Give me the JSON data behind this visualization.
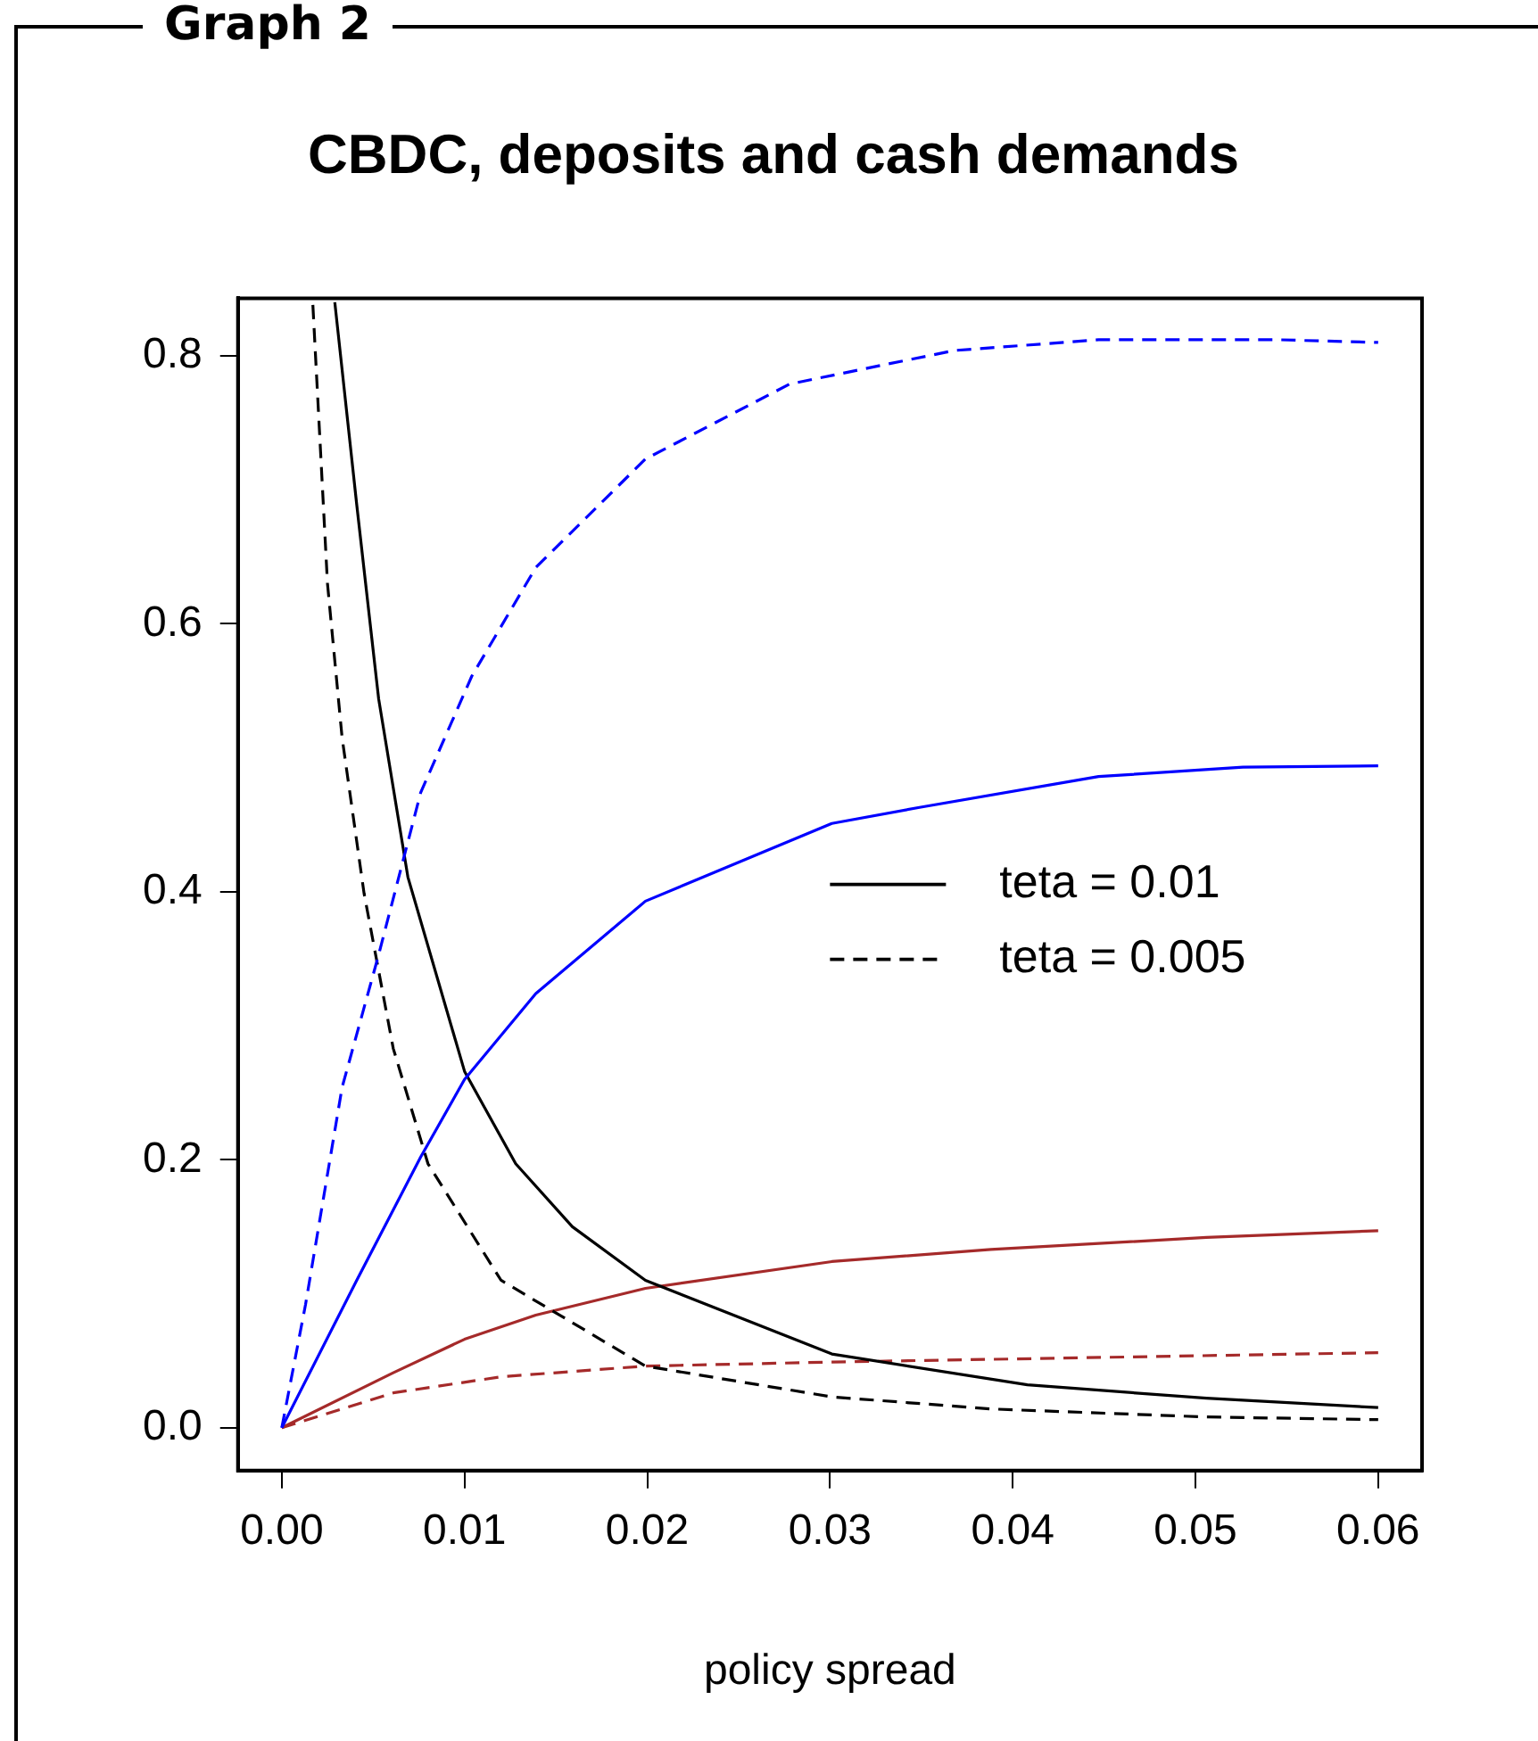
{
  "chart_data": {
    "type": "line",
    "title": "CBDC, deposits and cash demands",
    "xlabel": "policy spread",
    "annotations": [
      "Graph 2"
    ],
    "xlim": [
      -0.0024,
      0.0624
    ],
    "xticks": [
      {
        "value": 0,
        "label": "0.00"
      },
      {
        "value": 0.01,
        "label": "0.01"
      },
      {
        "value": 0.02,
        "label": "0.02"
      },
      {
        "value": 0.03,
        "label": "0.03"
      },
      {
        "value": 0.04,
        "label": "0.04"
      },
      {
        "value": 0.05,
        "label": "0.05"
      },
      {
        "value": 0.06,
        "label": "0.06"
      }
    ],
    "ylim": [
      -0.032,
      0.843
    ],
    "yticks": [
      {
        "value": 0,
        "label": "0.0"
      },
      {
        "value": 0.2,
        "label": "0.2"
      },
      {
        "value": 0.4,
        "label": "0.4"
      },
      {
        "value": 0.6,
        "label": "0.6"
      },
      {
        "value": 0.8,
        "label": "0.8"
      }
    ],
    "grid": false,
    "legend": "right",
    "marker": "none",
    "series": [
      {
        "color": "#0000ff",
        "line_style": "dashed",
        "x": [
          0,
          0.0013,
          0.0033,
          0.0053,
          0.0076,
          0.0104,
          0.0139,
          0.0199,
          0.0278,
          0.0368,
          0.0447,
          0.0546,
          0.06
        ],
        "values": [
          0,
          0.092,
          0.254,
          0.353,
          0.474,
          0.561,
          0.642,
          0.723,
          0.779,
          0.804,
          0.812,
          0.812,
          0.81
        ]
      },
      {
        "color": "#0000ff",
        "line_style": "solid",
        "x": [
          0,
          0.0041,
          0.0076,
          0.01,
          0.0139,
          0.0199,
          0.0301,
          0.0349,
          0.0447,
          0.0526,
          0.06
        ],
        "values": [
          0,
          0.11,
          0.202,
          0.26,
          0.324,
          0.393,
          0.451,
          0.463,
          0.486,
          0.493,
          0.494
        ]
      },
      {
        "name": "teta = 0.01",
        "color": "#000000",
        "line_style": "solid",
        "x": [
          0.0029,
          0.0041,
          0.0053,
          0.0069,
          0.01,
          0.0128,
          0.0159,
          0.0199,
          0.0301,
          0.0408,
          0.0506,
          0.06
        ],
        "values": [
          0.84,
          0.689,
          0.544,
          0.411,
          0.266,
          0.197,
          0.15,
          0.11,
          0.055,
          0.032,
          0.022,
          0.015
        ]
      },
      {
        "name": "teta = 0.005",
        "color": "#000000",
        "line_style": "dashed",
        "x": [
          0.0017,
          0.0025,
          0.0033,
          0.0045,
          0.0061,
          0.008,
          0.012,
          0.0199,
          0.0301,
          0.0388,
          0.0506,
          0.06
        ],
        "values": [
          0.838,
          0.63,
          0.515,
          0.399,
          0.283,
          0.197,
          0.11,
          0.046,
          0.023,
          0.014,
          0.008,
          0.006
        ]
      },
      {
        "color": "#a52a2a",
        "line_style": "solid",
        "x": [
          0,
          0.0061,
          0.01,
          0.0139,
          0.0199,
          0.0301,
          0.0388,
          0.0506,
          0.06
        ],
        "values": [
          0,
          0.041,
          0.066,
          0.084,
          0.104,
          0.124,
          0.133,
          0.142,
          0.147
        ]
      },
      {
        "color": "#a52a2a",
        "line_style": "dashed",
        "x": [
          0,
          0.0033,
          0.0061,
          0.012,
          0.0199,
          0.0301,
          0.06
        ],
        "values": [
          0,
          0.014,
          0.026,
          0.038,
          0.046,
          0.049,
          0.056
        ]
      }
    ]
  }
}
